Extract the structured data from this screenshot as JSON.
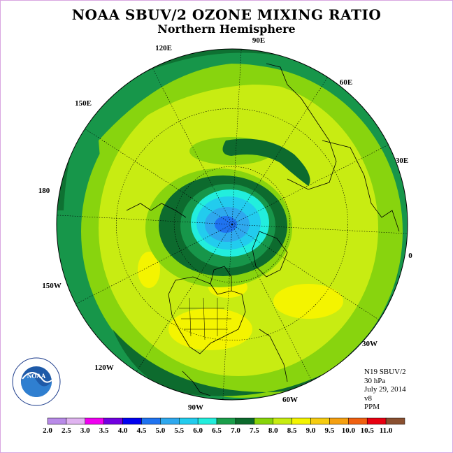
{
  "title": "NOAA SBUV/2 OZONE MIXING RATIO",
  "subtitle": "Northern Hemisphere",
  "longitude_labels": [
    {
      "text": "90E",
      "name": "lon-label-90e"
    },
    {
      "text": "60E",
      "name": "lon-label-60e"
    },
    {
      "text": "30E",
      "name": "lon-label-30e"
    },
    {
      "text": "0",
      "name": "lon-label-0"
    },
    {
      "text": "30W",
      "name": "lon-label-30w"
    },
    {
      "text": "60W",
      "name": "lon-label-60w"
    },
    {
      "text": "90W",
      "name": "lon-label-90w"
    },
    {
      "text": "120W",
      "name": "lon-label-120w"
    },
    {
      "text": "150W",
      "name": "lon-label-150w"
    },
    {
      "text": "180",
      "name": "lon-label-180"
    },
    {
      "text": "150E",
      "name": "lon-label-150e"
    },
    {
      "text": "120E",
      "name": "lon-label-120e"
    }
  ],
  "info": {
    "satellite": "N19 SBUV/2",
    "pressure": "30 hPa",
    "date": "July 29, 2014",
    "version": "v8",
    "units": "PPM"
  },
  "colorbar": {
    "ticks": [
      "2.0",
      "2.5",
      "3.0",
      "3.5",
      "4.0",
      "4.5",
      "5.0",
      "5.5",
      "6.0",
      "6.5",
      "7.0",
      "7.5",
      "8.0",
      "8.5",
      "9.0",
      "9.5",
      "10.0",
      "10.5",
      "11.0"
    ],
    "colors": [
      "#b98be8",
      "#e0b4f0",
      "#f000f0",
      "#7000e0",
      "#0000f0",
      "#1f73f0",
      "#2ea8ee",
      "#22ccee",
      "#22eedd",
      "#1a9e4a",
      "#0c6a2c",
      "#87d40a",
      "#c7ec10",
      "#f4f400",
      "#f6cc10",
      "#f5a010",
      "#f06010",
      "#e80010",
      "#8a5030"
    ]
  },
  "logo": {
    "text": "NOAA",
    "ring_text": "NATIONAL OCEANIC AND ATMOSPHERIC ADMINISTRATION · U.S. DEPARTMENT OF COMMERCE"
  }
}
